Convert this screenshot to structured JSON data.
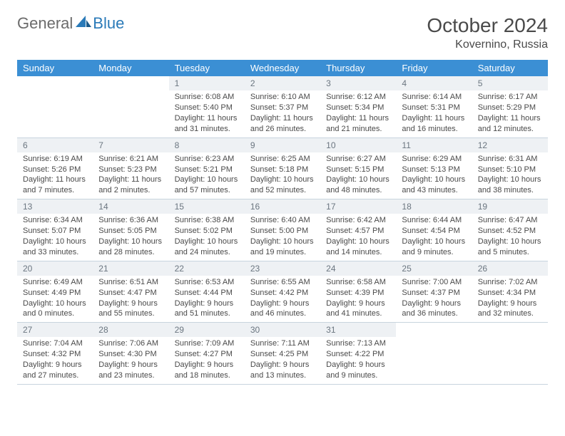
{
  "logo": {
    "general": "General",
    "blue": "Blue"
  },
  "title": "October 2024",
  "location": "Kovernino, Russia",
  "colors": {
    "header_bg": "#3b8fd4",
    "header_text": "#ffffff",
    "daynum_bg": "#eef1f4",
    "daynum_text": "#6b7680",
    "body_text": "#4a4a4a",
    "border": "#c8d4de",
    "logo_gray": "#6b6b6b",
    "logo_blue": "#2a7ab8"
  },
  "day_names": [
    "Sunday",
    "Monday",
    "Tuesday",
    "Wednesday",
    "Thursday",
    "Friday",
    "Saturday"
  ],
  "weeks": [
    [
      null,
      null,
      {
        "n": "1",
        "sunrise": "Sunrise: 6:08 AM",
        "sunset": "Sunset: 5:40 PM",
        "daylight": "Daylight: 11 hours and 31 minutes."
      },
      {
        "n": "2",
        "sunrise": "Sunrise: 6:10 AM",
        "sunset": "Sunset: 5:37 PM",
        "daylight": "Daylight: 11 hours and 26 minutes."
      },
      {
        "n": "3",
        "sunrise": "Sunrise: 6:12 AM",
        "sunset": "Sunset: 5:34 PM",
        "daylight": "Daylight: 11 hours and 21 minutes."
      },
      {
        "n": "4",
        "sunrise": "Sunrise: 6:14 AM",
        "sunset": "Sunset: 5:31 PM",
        "daylight": "Daylight: 11 hours and 16 minutes."
      },
      {
        "n": "5",
        "sunrise": "Sunrise: 6:17 AM",
        "sunset": "Sunset: 5:29 PM",
        "daylight": "Daylight: 11 hours and 12 minutes."
      }
    ],
    [
      {
        "n": "6",
        "sunrise": "Sunrise: 6:19 AM",
        "sunset": "Sunset: 5:26 PM",
        "daylight": "Daylight: 11 hours and 7 minutes."
      },
      {
        "n": "7",
        "sunrise": "Sunrise: 6:21 AM",
        "sunset": "Sunset: 5:23 PM",
        "daylight": "Daylight: 11 hours and 2 minutes."
      },
      {
        "n": "8",
        "sunrise": "Sunrise: 6:23 AM",
        "sunset": "Sunset: 5:21 PM",
        "daylight": "Daylight: 10 hours and 57 minutes."
      },
      {
        "n": "9",
        "sunrise": "Sunrise: 6:25 AM",
        "sunset": "Sunset: 5:18 PM",
        "daylight": "Daylight: 10 hours and 52 minutes."
      },
      {
        "n": "10",
        "sunrise": "Sunrise: 6:27 AM",
        "sunset": "Sunset: 5:15 PM",
        "daylight": "Daylight: 10 hours and 48 minutes."
      },
      {
        "n": "11",
        "sunrise": "Sunrise: 6:29 AM",
        "sunset": "Sunset: 5:13 PM",
        "daylight": "Daylight: 10 hours and 43 minutes."
      },
      {
        "n": "12",
        "sunrise": "Sunrise: 6:31 AM",
        "sunset": "Sunset: 5:10 PM",
        "daylight": "Daylight: 10 hours and 38 minutes."
      }
    ],
    [
      {
        "n": "13",
        "sunrise": "Sunrise: 6:34 AM",
        "sunset": "Sunset: 5:07 PM",
        "daylight": "Daylight: 10 hours and 33 minutes."
      },
      {
        "n": "14",
        "sunrise": "Sunrise: 6:36 AM",
        "sunset": "Sunset: 5:05 PM",
        "daylight": "Daylight: 10 hours and 28 minutes."
      },
      {
        "n": "15",
        "sunrise": "Sunrise: 6:38 AM",
        "sunset": "Sunset: 5:02 PM",
        "daylight": "Daylight: 10 hours and 24 minutes."
      },
      {
        "n": "16",
        "sunrise": "Sunrise: 6:40 AM",
        "sunset": "Sunset: 5:00 PM",
        "daylight": "Daylight: 10 hours and 19 minutes."
      },
      {
        "n": "17",
        "sunrise": "Sunrise: 6:42 AM",
        "sunset": "Sunset: 4:57 PM",
        "daylight": "Daylight: 10 hours and 14 minutes."
      },
      {
        "n": "18",
        "sunrise": "Sunrise: 6:44 AM",
        "sunset": "Sunset: 4:54 PM",
        "daylight": "Daylight: 10 hours and 9 minutes."
      },
      {
        "n": "19",
        "sunrise": "Sunrise: 6:47 AM",
        "sunset": "Sunset: 4:52 PM",
        "daylight": "Daylight: 10 hours and 5 minutes."
      }
    ],
    [
      {
        "n": "20",
        "sunrise": "Sunrise: 6:49 AM",
        "sunset": "Sunset: 4:49 PM",
        "daylight": "Daylight: 10 hours and 0 minutes."
      },
      {
        "n": "21",
        "sunrise": "Sunrise: 6:51 AM",
        "sunset": "Sunset: 4:47 PM",
        "daylight": "Daylight: 9 hours and 55 minutes."
      },
      {
        "n": "22",
        "sunrise": "Sunrise: 6:53 AM",
        "sunset": "Sunset: 4:44 PM",
        "daylight": "Daylight: 9 hours and 51 minutes."
      },
      {
        "n": "23",
        "sunrise": "Sunrise: 6:55 AM",
        "sunset": "Sunset: 4:42 PM",
        "daylight": "Daylight: 9 hours and 46 minutes."
      },
      {
        "n": "24",
        "sunrise": "Sunrise: 6:58 AM",
        "sunset": "Sunset: 4:39 PM",
        "daylight": "Daylight: 9 hours and 41 minutes."
      },
      {
        "n": "25",
        "sunrise": "Sunrise: 7:00 AM",
        "sunset": "Sunset: 4:37 PM",
        "daylight": "Daylight: 9 hours and 36 minutes."
      },
      {
        "n": "26",
        "sunrise": "Sunrise: 7:02 AM",
        "sunset": "Sunset: 4:34 PM",
        "daylight": "Daylight: 9 hours and 32 minutes."
      }
    ],
    [
      {
        "n": "27",
        "sunrise": "Sunrise: 7:04 AM",
        "sunset": "Sunset: 4:32 PM",
        "daylight": "Daylight: 9 hours and 27 minutes."
      },
      {
        "n": "28",
        "sunrise": "Sunrise: 7:06 AM",
        "sunset": "Sunset: 4:30 PM",
        "daylight": "Daylight: 9 hours and 23 minutes."
      },
      {
        "n": "29",
        "sunrise": "Sunrise: 7:09 AM",
        "sunset": "Sunset: 4:27 PM",
        "daylight": "Daylight: 9 hours and 18 minutes."
      },
      {
        "n": "30",
        "sunrise": "Sunrise: 7:11 AM",
        "sunset": "Sunset: 4:25 PM",
        "daylight": "Daylight: 9 hours and 13 minutes."
      },
      {
        "n": "31",
        "sunrise": "Sunrise: 7:13 AM",
        "sunset": "Sunset: 4:22 PM",
        "daylight": "Daylight: 9 hours and 9 minutes."
      },
      null,
      null
    ]
  ]
}
